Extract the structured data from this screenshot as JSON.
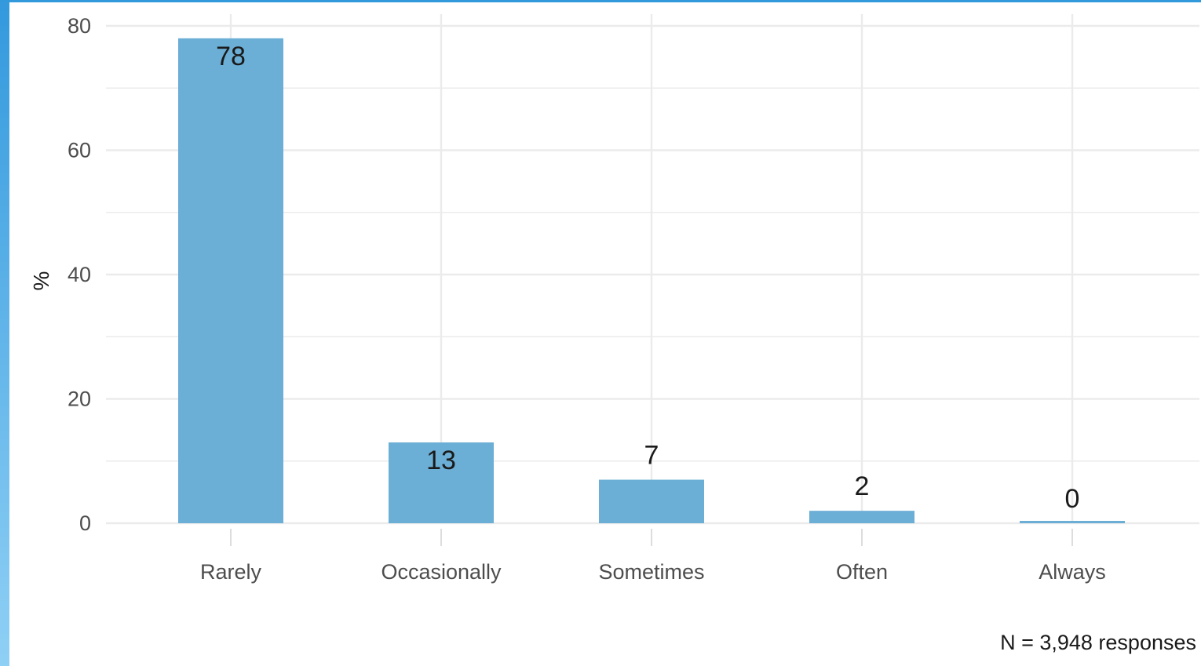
{
  "chart_data": {
    "type": "bar",
    "categories": [
      "Rarely",
      "Occasionally",
      "Sometimes",
      "Often",
      "Always"
    ],
    "values": [
      78,
      13,
      7,
      2,
      0
    ],
    "data_labels": [
      "78",
      "13",
      "7",
      "2",
      "0"
    ],
    "ylabel": "%",
    "xlabel": "",
    "ylim": [
      0,
      80
    ],
    "yticks": [
      0,
      20,
      40,
      60,
      80
    ],
    "grid": true,
    "caption": "N =  3,948 responses",
    "colors": {
      "bar": "#6baed6",
      "grid": "#ebebeb",
      "frame_accent": "#3399dd"
    }
  }
}
